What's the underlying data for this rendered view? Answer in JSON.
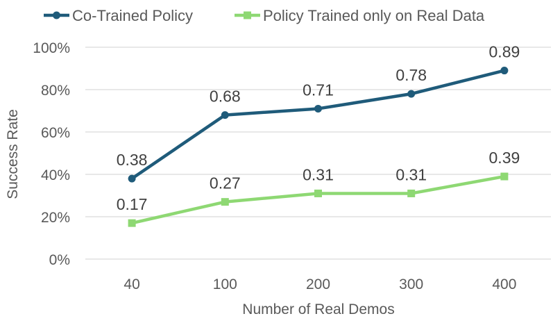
{
  "chart_data": {
    "type": "line",
    "categories": [
      "40",
      "100",
      "200",
      "300",
      "400"
    ],
    "series": [
      {
        "name": "Co-Trained Policy",
        "values": [
          0.38,
          0.68,
          0.71,
          0.78,
          0.89
        ],
        "labels": [
          "0.38",
          "0.68",
          "0.71",
          "0.78",
          "0.89"
        ],
        "color": "#1f5b7a",
        "marker": "circle"
      },
      {
        "name": "Policy Trained only on Real Data",
        "values": [
          0.17,
          0.27,
          0.31,
          0.31,
          0.39
        ],
        "labels": [
          "0.17",
          "0.27",
          "0.31",
          "0.31",
          "0.39"
        ],
        "color": "#8ed873",
        "marker": "square"
      }
    ],
    "xlabel": "Number of Real Demos",
    "ylabel": "Success Rate",
    "ylim": [
      0,
      1
    ],
    "yticks": [
      0,
      0.2,
      0.4,
      0.6,
      0.8,
      1.0
    ],
    "ytick_labels": [
      "0%",
      "20%",
      "40%",
      "60%",
      "80%",
      "100%"
    ],
    "grid": true,
    "gridline_color": "#d9d9d9",
    "legend_position": "top-left"
  }
}
